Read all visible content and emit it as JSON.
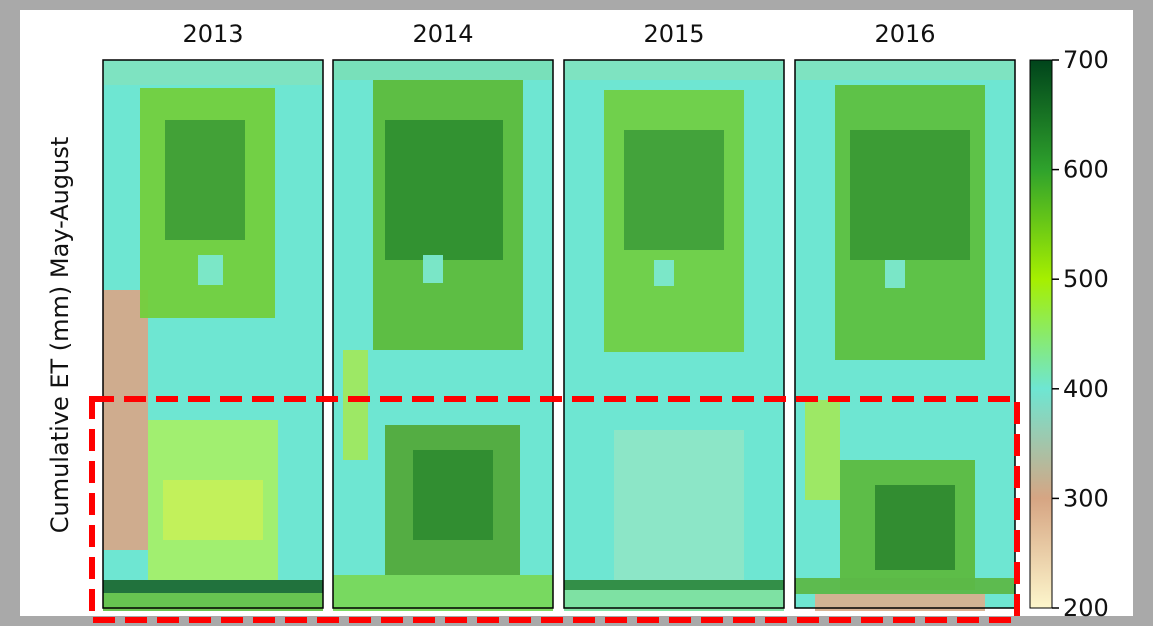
{
  "chart_data": {
    "type": "heatmap",
    "panel_titles": [
      "2013",
      "2014",
      "2015",
      "2016"
    ],
    "ylabel": "Cumulative ET (mm) May-August",
    "colorbar": {
      "lim": [
        200,
        700
      ],
      "ticks": [
        200,
        300,
        400,
        500,
        600,
        700
      ],
      "colormap": [
        "#fdf6cc",
        "#d6a583",
        "#6ee6d2",
        "#a6ef00",
        "#2fa22c",
        "#00441b"
      ]
    }
  }
}
